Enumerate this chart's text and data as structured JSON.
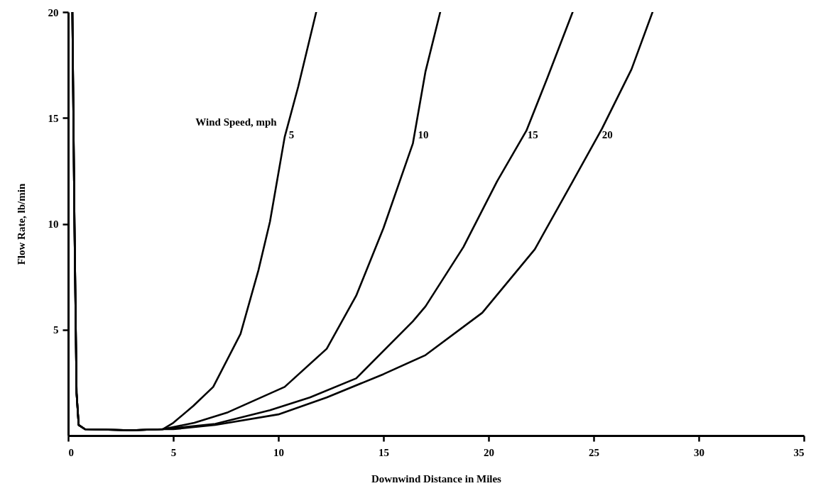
{
  "chart_data": {
    "type": "line",
    "xlabel": "Downwind Distance in Miles",
    "ylabel": "Flow Rate, lb/min",
    "legend_title": "Wind Speed, mph",
    "xlim": [
      0,
      35
    ],
    "ylim": [
      0,
      20
    ],
    "xticks": [
      0,
      5,
      10,
      15,
      20,
      25,
      30,
      35
    ],
    "yticks": [
      5,
      10,
      15,
      20
    ],
    "grid": false,
    "legend": false,
    "series": [
      {
        "name": "5",
        "color": "#000000",
        "x": [
          0.2,
          0.3,
          0.4,
          0.5,
          0.8,
          3,
          4.5,
          5,
          5.95,
          6.9,
          8.2,
          9.05,
          9.6,
          10.3,
          10.95,
          11.8
        ],
        "values": [
          20,
          10,
          2,
          0.5,
          0.3,
          0.25,
          0.3,
          0.6,
          1.4,
          2.3,
          4.8,
          7.8,
          10.1,
          14.1,
          16.5,
          20
        ]
      },
      {
        "name": "10",
        "color": "#000000",
        "x": [
          0.2,
          0.3,
          0.4,
          0.5,
          0.8,
          3,
          4.5,
          5,
          6,
          7.6,
          10.3,
          12.3,
          13.7,
          15,
          16.4,
          17,
          17.7
        ],
        "values": [
          20,
          10,
          2,
          0.5,
          0.3,
          0.25,
          0.3,
          0.4,
          0.6,
          1.1,
          2.3,
          4.1,
          6.6,
          9.8,
          13.8,
          17.2,
          20
        ]
      },
      {
        "name": "15",
        "color": "#000000",
        "x": [
          0.2,
          0.3,
          0.4,
          0.5,
          0.8,
          3,
          4.5,
          5,
          7,
          9.6,
          11.5,
          13.7,
          16.4,
          17,
          18.8,
          20.4,
          21.8,
          22.8,
          24
        ],
        "values": [
          20,
          10,
          2,
          0.5,
          0.3,
          0.25,
          0.3,
          0.35,
          0.55,
          1.2,
          1.8,
          2.7,
          5.4,
          6.1,
          8.9,
          12,
          14.4,
          16.9,
          20
        ]
      },
      {
        "name": "20",
        "color": "#000000",
        "x": [
          0.2,
          0.3,
          0.4,
          0.5,
          0.8,
          3,
          4.5,
          5,
          7,
          10,
          12.3,
          15,
          17,
          19.7,
          22.2,
          24,
          25.4,
          26.8,
          27.8
        ],
        "values": [
          20,
          10,
          2,
          0.5,
          0.3,
          0.25,
          0.3,
          0.3,
          0.5,
          1,
          1.8,
          2.9,
          3.8,
          5.8,
          8.8,
          12,
          14.5,
          17.3,
          20
        ]
      }
    ]
  }
}
